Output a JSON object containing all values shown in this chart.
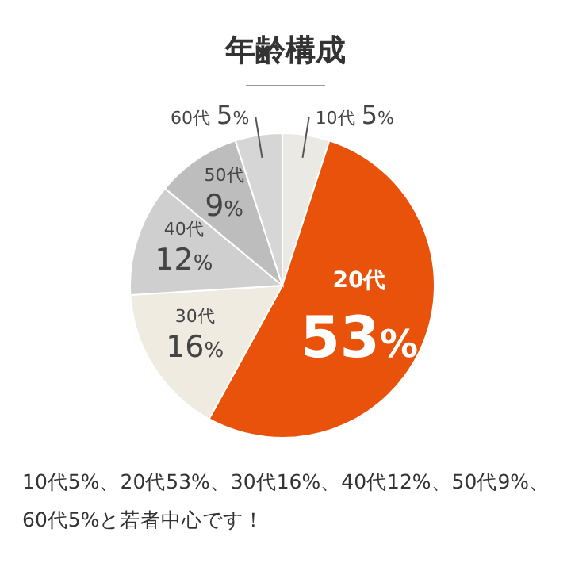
{
  "chart_data": {
    "type": "pie",
    "title": "年齢構成",
    "categories": [
      "10代",
      "20代",
      "30代",
      "40代",
      "50代",
      "60代"
    ],
    "values": [
      5,
      53,
      16,
      12,
      9,
      5
    ],
    "value_labels": [
      "5%",
      "53%",
      "16%",
      "12%",
      "9%",
      "5%"
    ],
    "colors": [
      "#ebe9e4",
      "#e8520a",
      "#f0ebe1",
      "#cfcfcf",
      "#bdbdbd",
      "#d6d6d6"
    ],
    "annotations": [
      "10代5%、20代53%、30代16%、40代12%、50代9%、60代5%と若者中心です！"
    ]
  }
}
